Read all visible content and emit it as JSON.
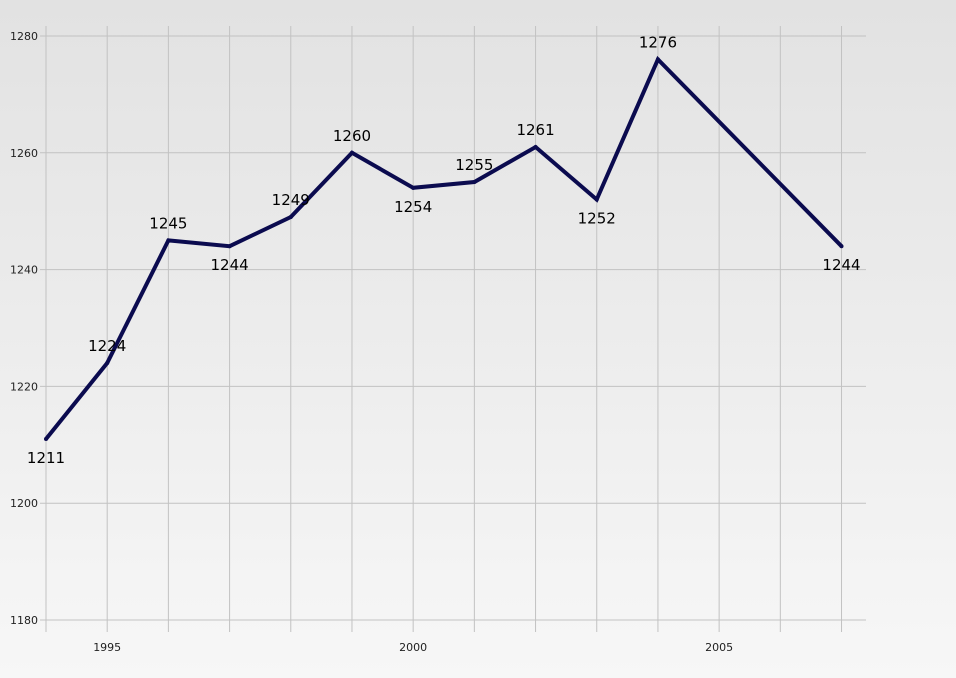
{
  "chart_data": {
    "type": "line",
    "title": "",
    "xlabel": "",
    "ylabel": "",
    "x": [
      1994,
      1995,
      1996,
      1997,
      1998,
      1999,
      2000,
      2001,
      2002,
      2003,
      2004,
      2007
    ],
    "series": [
      {
        "values": [
          1211,
          1224,
          1245,
          1244,
          1249,
          1260,
          1254,
          1255,
          1261,
          1252,
          1276,
          1244
        ],
        "color": "#0b0b4f"
      }
    ],
    "data_labels": [
      "1211",
      "1224",
      "1245",
      "1244",
      "1249",
      "1260",
      "1254",
      "1255",
      "1261",
      "1252",
      "1276",
      "1244"
    ],
    "xlim": [
      1994,
      2007.4
    ],
    "ylim": [
      1180,
      1280
    ],
    "y_ticks": [
      1180,
      1200,
      1220,
      1240,
      1260,
      1280
    ],
    "y_tick_labels": [
      "1180",
      "1200",
      "1220",
      "1240",
      "1260",
      "1280"
    ],
    "x_ticks": [
      1995,
      2000,
      2005
    ],
    "x_tick_labels": [
      "1995",
      "2000",
      "2005"
    ],
    "grid": true,
    "legend": "none"
  }
}
